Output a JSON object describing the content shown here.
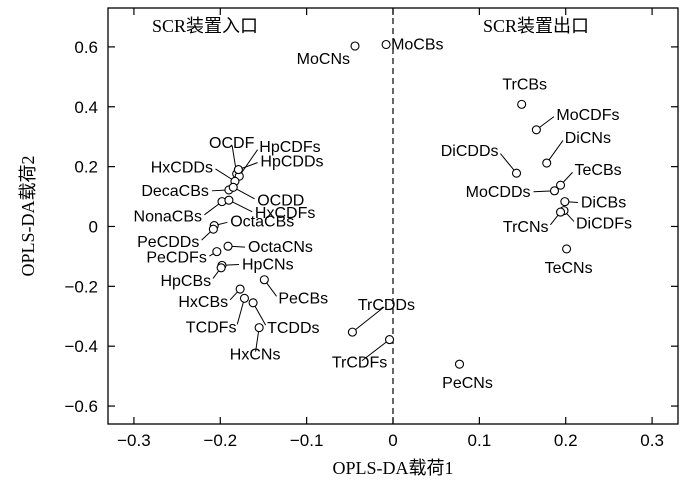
{
  "chart_data": {
    "type": "scatter",
    "xlabel": "OPLS-DA载荷1",
    "ylabel": "OPLS-DA载荷2",
    "xlim": [
      -0.33,
      0.33
    ],
    "ylim": [
      -0.66,
      0.73
    ],
    "xticks": [
      -0.3,
      -0.2,
      -0.1,
      0,
      0.1,
      0.2,
      0.3
    ],
    "xtick_labels": [
      "−0.3",
      "−0.2",
      "−0.1",
      "0",
      "0.1",
      "0.2",
      "0.3"
    ],
    "yticks": [
      0.6,
      0.4,
      0.2,
      0,
      -0.2,
      -0.4,
      -0.6
    ],
    "ytick_labels": [
      "0.6",
      "0.4",
      "0.2",
      "0",
      "−0.2",
      "−0.4",
      "−0.6"
    ],
    "divider_x": 0,
    "region_labels": {
      "left": "SCR装置入口",
      "right": "SCR装置出口"
    },
    "grid": false,
    "points": [
      {
        "label": "MoCBs",
        "x": -0.008,
        "y": 0.608
      },
      {
        "label": "MoCNs",
        "x": -0.044,
        "y": 0.603
      },
      {
        "label": "TrCBs",
        "x": 0.149,
        "y": 0.408
      },
      {
        "label": "MoCDFs",
        "x": 0.166,
        "y": 0.323
      },
      {
        "label": "DiCNs",
        "x": 0.178,
        "y": 0.212
      },
      {
        "label": "DiCDDs",
        "x": 0.143,
        "y": 0.178
      },
      {
        "label": "TeCBs",
        "x": 0.194,
        "y": 0.138
      },
      {
        "label": "MoCDDs",
        "x": 0.187,
        "y": 0.119
      },
      {
        "label": "DiCBs",
        "x": 0.199,
        "y": 0.083
      },
      {
        "label": "DiCDFs",
        "x": 0.198,
        "y": 0.053
      },
      {
        "label": "TrCNs",
        "x": 0.194,
        "y": 0.048
      },
      {
        "label": "TeCNs",
        "x": 0.201,
        "y": -0.075
      },
      {
        "label": "OCDF",
        "x": -0.181,
        "y": 0.176
      },
      {
        "label": "HpCDFs",
        "x": -0.178,
        "y": 0.168
      },
      {
        "label": "HxCDDs",
        "x": -0.183,
        "y": 0.151
      },
      {
        "label": "HpCDDs",
        "x": -0.179,
        "y": 0.19
      },
      {
        "label": "DecaCBs",
        "x": -0.19,
        "y": 0.122
      },
      {
        "label": "OCDD",
        "x": -0.185,
        "y": 0.131
      },
      {
        "label": "NonaCBs",
        "x": -0.198,
        "y": 0.083
      },
      {
        "label": "HxCDFs",
        "x": -0.19,
        "y": 0.088
      },
      {
        "label": "OctaCBs",
        "x": -0.207,
        "y": 0.003
      },
      {
        "label": "PeCDDs",
        "x": -0.208,
        "y": -0.009
      },
      {
        "label": "OctaCNs",
        "x": -0.191,
        "y": -0.066
      },
      {
        "label": "PeCDFs",
        "x": -0.204,
        "y": -0.084
      },
      {
        "label": "HpCNs",
        "x": -0.198,
        "y": -0.13
      },
      {
        "label": "HpCBs",
        "x": -0.199,
        "y": -0.138
      },
      {
        "label": "PeCBs",
        "x": -0.149,
        "y": -0.178
      },
      {
        "label": "HxCBs",
        "x": -0.177,
        "y": -0.209
      },
      {
        "label": "TCDFs",
        "x": -0.172,
        "y": -0.24
      },
      {
        "label": "TCDDs",
        "x": -0.162,
        "y": -0.255
      },
      {
        "label": "HxCNs",
        "x": -0.155,
        "y": -0.338
      },
      {
        "label": "TrCDDs",
        "x": -0.047,
        "y": -0.353
      },
      {
        "label": "TrCDFs",
        "x": -0.004,
        "y": -0.378
      },
      {
        "label": "PeCNs",
        "x": 0.077,
        "y": -0.46
      }
    ]
  }
}
